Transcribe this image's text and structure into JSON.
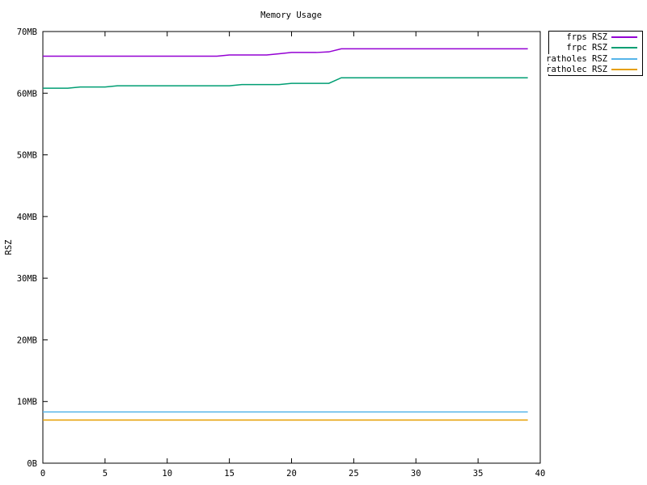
{
  "chart_data": {
    "type": "line",
    "title": "Memory Usage",
    "ylabel": "RSZ",
    "xlabel": "",
    "xlim": [
      0,
      40
    ],
    "ylim_mb": [
      0,
      70
    ],
    "grid": false,
    "legend_position": "outside-top-right",
    "x_ticks": [
      0,
      5,
      10,
      15,
      20,
      25,
      30,
      35,
      40
    ],
    "y_ticks": [
      {
        "value": 0,
        "label": "0B"
      },
      {
        "value": 10,
        "label": "10MB"
      },
      {
        "value": 20,
        "label": "20MB"
      },
      {
        "value": 30,
        "label": "30MB"
      },
      {
        "value": 40,
        "label": "40MB"
      },
      {
        "value": 50,
        "label": "50MB"
      },
      {
        "value": 60,
        "label": "60MB"
      },
      {
        "value": 70,
        "label": "70MB"
      }
    ],
    "x": [
      0,
      1,
      2,
      3,
      4,
      5,
      6,
      7,
      8,
      9,
      10,
      11,
      12,
      13,
      14,
      15,
      16,
      17,
      18,
      19,
      20,
      21,
      22,
      23,
      24,
      25,
      26,
      27,
      28,
      29,
      30,
      31,
      32,
      33,
      34,
      35,
      36,
      37,
      38,
      39
    ],
    "series": [
      {
        "name": "frps RSZ",
        "color": "#9400d3",
        "values_mb": [
          66,
          66,
          66,
          66,
          66,
          66,
          66,
          66,
          66,
          66,
          66,
          66,
          66,
          66,
          66,
          66.2,
          66.2,
          66.2,
          66.2,
          66.4,
          66.6,
          66.6,
          66.6,
          66.7,
          67.2,
          67.2,
          67.2,
          67.2,
          67.2,
          67.2,
          67.2,
          67.2,
          67.2,
          67.2,
          67.2,
          67.2,
          67.2,
          67.2,
          67.2,
          67.2
        ]
      },
      {
        "name": "frpc RSZ",
        "color": "#009e73",
        "values_mb": [
          60.8,
          60.8,
          60.8,
          61,
          61,
          61,
          61.2,
          61.2,
          61.2,
          61.2,
          61.2,
          61.2,
          61.2,
          61.2,
          61.2,
          61.2,
          61.4,
          61.4,
          61.4,
          61.4,
          61.6,
          61.6,
          61.6,
          61.6,
          62.5,
          62.5,
          62.5,
          62.5,
          62.5,
          62.5,
          62.5,
          62.5,
          62.5,
          62.5,
          62.5,
          62.5,
          62.5,
          62.5,
          62.5,
          62.5
        ]
      },
      {
        "name": "ratholes RSZ",
        "color": "#56b4e9",
        "values_mb": [
          8.3,
          8.3,
          8.3,
          8.3,
          8.3,
          8.3,
          8.3,
          8.3,
          8.3,
          8.3,
          8.3,
          8.3,
          8.3,
          8.3,
          8.3,
          8.3,
          8.3,
          8.3,
          8.3,
          8.3,
          8.3,
          8.3,
          8.3,
          8.3,
          8.3,
          8.3,
          8.3,
          8.3,
          8.3,
          8.3,
          8.3,
          8.3,
          8.3,
          8.3,
          8.3,
          8.3,
          8.3,
          8.3,
          8.3,
          8.3
        ]
      },
      {
        "name": "ratholec RSZ",
        "color": "#e69f00",
        "values_mb": [
          7,
          7,
          7,
          7,
          7,
          7,
          7,
          7,
          7,
          7,
          7,
          7,
          7,
          7,
          7,
          7,
          7,
          7,
          7,
          7,
          7,
          7,
          7,
          7,
          7,
          7,
          7,
          7,
          7,
          7,
          7,
          7,
          7,
          7,
          7,
          7,
          7,
          7,
          7,
          7
        ]
      }
    ]
  }
}
